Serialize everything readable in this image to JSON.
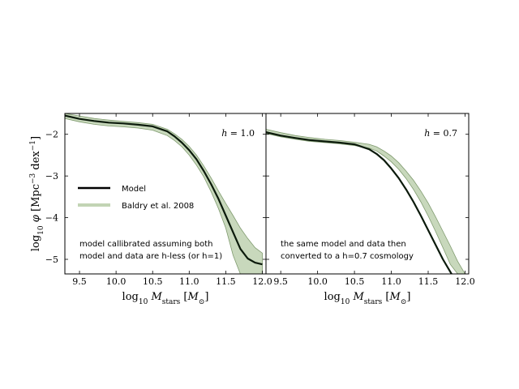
{
  "chart_data": [
    {
      "type": "line",
      "panel_label": "h = 1.0",
      "xlabel": "log10 Mstars [M⊙]",
      "ylabel": "log10 φ [Mpc^-3 dex^-1]",
      "xlim": [
        9.3,
        12.05
      ],
      "ylim": [
        -5.35,
        -1.5
      ],
      "xticks": [
        "9.5",
        "10.0",
        "10.5",
        "11.0",
        "11.5",
        "12.0"
      ],
      "yticks": [
        "−2",
        "−3",
        "−4",
        "−5"
      ],
      "legend": [
        {
          "name": "Model",
          "color": "#000000"
        },
        {
          "name": "Baldry et al. 2008",
          "color": "#c2d4b4"
        }
      ],
      "annotation": [
        "model callibrated assuming both",
        "model and data are h-less (or h=1)"
      ],
      "series": [
        {
          "name": "Model",
          "x": [
            9.3,
            9.5,
            9.7,
            9.9,
            10.1,
            10.3,
            10.5,
            10.7,
            10.8,
            10.9,
            11.0,
            11.1,
            11.2,
            11.3,
            11.4,
            11.5,
            11.6,
            11.7,
            11.8,
            11.9,
            12.0
          ],
          "y": [
            -1.55,
            -1.63,
            -1.68,
            -1.72,
            -1.74,
            -1.77,
            -1.81,
            -1.93,
            -2.05,
            -2.2,
            -2.38,
            -2.6,
            -2.88,
            -3.2,
            -3.55,
            -3.95,
            -4.35,
            -4.75,
            -4.98,
            -5.08,
            -5.12
          ]
        },
        {
          "name": "Baldry et al. 2008",
          "x": [
            9.3,
            9.5,
            9.7,
            9.9,
            10.1,
            10.3,
            10.5,
            10.7,
            10.8,
            10.9,
            11.0,
            11.1,
            11.2,
            11.3,
            11.4,
            11.5,
            11.6,
            11.7,
            11.8,
            11.9,
            12.0
          ],
          "y_upper": [
            -1.5,
            -1.56,
            -1.62,
            -1.66,
            -1.69,
            -1.72,
            -1.76,
            -1.88,
            -1.99,
            -2.12,
            -2.29,
            -2.5,
            -2.76,
            -3.05,
            -3.36,
            -3.66,
            -3.95,
            -4.25,
            -4.5,
            -4.72,
            -4.85
          ],
          "y_lower": [
            -1.62,
            -1.7,
            -1.76,
            -1.8,
            -1.82,
            -1.85,
            -1.9,
            -2.03,
            -2.15,
            -2.3,
            -2.5,
            -2.74,
            -3.02,
            -3.38,
            -3.78,
            -4.25,
            -4.9,
            -5.35,
            -5.35,
            -5.35,
            -5.35
          ]
        }
      ]
    },
    {
      "type": "line",
      "panel_label": "h = 0.7",
      "xlabel": "log10 Mstars [M⊙]",
      "xlim": [
        9.3,
        12.05
      ],
      "ylim": [
        -5.35,
        -1.5
      ],
      "xticks": [
        "9.5",
        "10.0",
        "10.5",
        "11.0",
        "11.5",
        "12.0"
      ],
      "annotation": [
        "the same model and data then",
        "converted to a h=0.7 cosmology"
      ],
      "series": [
        {
          "name": "Model",
          "x": [
            9.3,
            9.5,
            9.7,
            9.9,
            10.1,
            10.3,
            10.5,
            10.7,
            10.8,
            10.9,
            11.0,
            11.1,
            11.2,
            11.3,
            11.4,
            11.5,
            11.6,
            11.7,
            11.8,
            11.9
          ],
          "y": [
            -1.95,
            -2.03,
            -2.09,
            -2.14,
            -2.17,
            -2.2,
            -2.24,
            -2.36,
            -2.47,
            -2.62,
            -2.82,
            -3.05,
            -3.32,
            -3.62,
            -3.95,
            -4.3,
            -4.65,
            -5.0,
            -5.3,
            -5.6
          ]
        },
        {
          "name": "Baldry et al. 2008",
          "x": [
            9.3,
            9.5,
            9.7,
            9.9,
            10.1,
            10.3,
            10.5,
            10.7,
            10.8,
            10.9,
            11.0,
            11.1,
            11.2,
            11.3,
            11.4,
            11.5,
            11.6,
            11.7,
            11.8,
            11.9,
            12.0
          ],
          "y_upper": [
            -1.88,
            -1.96,
            -2.03,
            -2.08,
            -2.12,
            -2.15,
            -2.19,
            -2.24,
            -2.3,
            -2.4,
            -2.52,
            -2.68,
            -2.88,
            -3.1,
            -3.36,
            -3.65,
            -3.98,
            -4.33,
            -4.68,
            -5.05,
            -5.35
          ],
          "y_lower": [
            -1.98,
            -2.06,
            -2.12,
            -2.17,
            -2.2,
            -2.23,
            -2.27,
            -2.33,
            -2.4,
            -2.52,
            -2.66,
            -2.84,
            -3.06,
            -3.32,
            -3.62,
            -3.96,
            -4.33,
            -4.72,
            -5.12,
            -5.35,
            -5.35
          ]
        }
      ]
    }
  ]
}
